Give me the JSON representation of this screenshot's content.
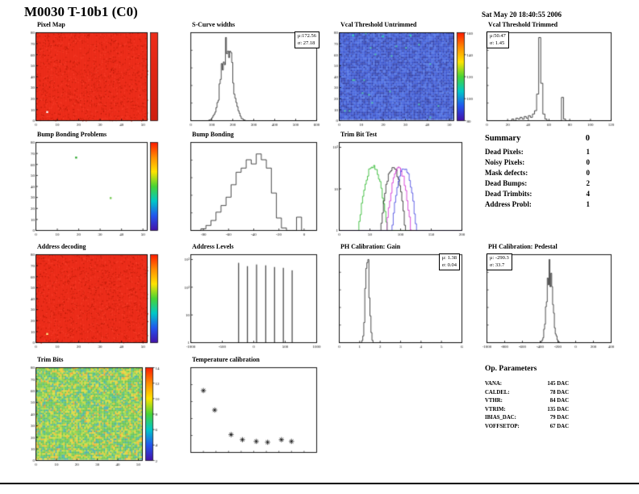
{
  "page": {
    "title": "M0030 T-10b1 (C0)",
    "timestamp": "Sat May 20 18:40:55 2006"
  },
  "summary": {
    "title": "Summary",
    "grade": "0",
    "rows": [
      {
        "label": "Dead Pixels:",
        "value": "1"
      },
      {
        "label": "Noisy Pixels:",
        "value": "0"
      },
      {
        "label": "Mask defects:",
        "value": "0"
      },
      {
        "label": "Dead Bumps:",
        "value": "2"
      },
      {
        "label": "Dead Trimbits:",
        "value": "4"
      },
      {
        "label": "Address Probl:",
        "value": "1"
      }
    ]
  },
  "op_parameters": {
    "title": "Op. Parameters",
    "rows": [
      {
        "label": "VANA:",
        "value": "145 DAC"
      },
      {
        "label": "CALDEL:",
        "value": "78 DAC"
      },
      {
        "label": "VTHR:",
        "value": "84 DAC"
      },
      {
        "label": "VTRIM:",
        "value": "135 DAC"
      },
      {
        "label": "IBIAS_DAC:",
        "value": "79 DAC"
      },
      {
        "label": "VOFFSETOP:",
        "value": "67 DAC"
      }
    ]
  },
  "chart_data": [
    {
      "title": "Pixel Map",
      "type": "heatmap",
      "x_range": [
        0,
        52
      ],
      "y_range": [
        0,
        80
      ],
      "x_ticks": [
        0,
        10,
        20,
        30,
        40,
        50
      ],
      "y_ticks": [
        0,
        10,
        20,
        30,
        40,
        50,
        60,
        70,
        80
      ],
      "fill": {
        "mode": "uniform-noise",
        "base": "#ee2d1a",
        "speckles": [
          "#d42410",
          "#f8402c",
          "#c01c0a"
        ]
      },
      "spots": [
        {
          "x": 0.1,
          "y": 0.9,
          "color": "#ffffff"
        }
      ],
      "colorbar": {
        "colors": [
          "#ee2d1a",
          "#cf1e0e"
        ],
        "ticks": []
      },
      "note": "uniform map, all pixels responding (value 1), one dead pixel lower-left"
    },
    {
      "title": "S-Curve widths",
      "type": "hist-gauss",
      "x_range": [
        0,
        600
      ],
      "x_ticks": [
        0,
        100,
        200,
        300,
        400,
        500,
        600
      ],
      "mu": 172.56,
      "sigma": 27.18,
      "nbins": 120,
      "stats": {
        "mu": 172.56,
        "sigma": 27.18,
        "mu_label": "μ:172.56",
        "sigma_label": "σ: 27.18"
      }
    },
    {
      "title": "Vcal Threshold Untrimmed",
      "type": "heatmap",
      "x_range": [
        0,
        52
      ],
      "y_range": [
        0,
        80
      ],
      "x_ticks": [
        0,
        10,
        20,
        30,
        40,
        50
      ],
      "y_ticks": [
        0,
        10,
        20,
        30,
        40,
        50,
        60,
        70,
        80
      ],
      "fill": {
        "mode": "noise",
        "palette": [
          "#2443cf",
          "#1d39c0",
          "#2f55dd",
          "#1a2fa8",
          "#3a63e2",
          "#2c4fd6",
          "#16279c"
        ],
        "rare": {
          "color": "#27b09a",
          "prob": 0.006
        }
      },
      "spots": [
        {
          "x": 0.12,
          "y": 0.03,
          "color": "#33ccbb"
        },
        {
          "x": 0.38,
          "y": 0.04,
          "color": "#33ccbb"
        },
        {
          "x": 0.62,
          "y": 0.03,
          "color": "#33ccbb"
        }
      ],
      "colorbar": {
        "colors": [
          "#ff1a00",
          "#ff8c00",
          "#ffe400",
          "#47d435",
          "#00c8c8",
          "#2255ee",
          "#4411aa"
        ],
        "ticks": [
          "160",
          "140",
          "120",
          "100",
          "80"
        ]
      }
    },
    {
      "title": "Vcal Threshold Trimmed",
      "type": "hist-bins",
      "x_range": [
        0,
        120
      ],
      "x_ticks": [
        0,
        20,
        40,
        60,
        80,
        100,
        120
      ],
      "bins": [
        0,
        0,
        0,
        0,
        0,
        0,
        0,
        0,
        0,
        0,
        0,
        0,
        0.02,
        0,
        0.03,
        0.02,
        0.04,
        0.02,
        0.05,
        0.03,
        0.06,
        0.04,
        0.08,
        0.12,
        0.32,
        1,
        0.45,
        0.08,
        0.02,
        0,
        0,
        0,
        0,
        0,
        0,
        0,
        0.28,
        0.02,
        0,
        0,
        0,
        0,
        0,
        0,
        0,
        0,
        0,
        0,
        0,
        0,
        0,
        0,
        0,
        0,
        0,
        0,
        0,
        0,
        0,
        0
      ],
      "stats": {
        "mu": 50.47,
        "sigma": 1.45,
        "mu_label": "μ:50.47",
        "sigma_label": "σ: 1.45"
      }
    },
    {
      "title": "Bump Bonding Problems",
      "type": "heatmap",
      "x_range": [
        0,
        52
      ],
      "y_range": [
        0,
        80
      ],
      "x_ticks": [
        0,
        10,
        20,
        30,
        40,
        50
      ],
      "y_ticks": [
        0,
        10,
        20,
        30,
        40,
        50,
        60,
        70,
        80
      ],
      "fill": {
        "mode": "blank",
        "base": "#ffffff"
      },
      "spots": [
        {
          "x": 0.36,
          "y": 0.17,
          "color": "#33aa33"
        },
        {
          "x": 0.67,
          "y": 0.63,
          "color": "#77cc55"
        }
      ],
      "colorbar": {
        "colors": [
          "#ff1a00",
          "#ff8c00",
          "#ffe400",
          "#47d435",
          "#00c8c8",
          "#2255ee",
          "#4411aa"
        ],
        "ticks": []
      },
      "note": "2 dead bumps visible as isolated colored pixels"
    },
    {
      "title": "Bump Bonding",
      "type": "hist-bins",
      "x_range": [
        -90,
        10
      ],
      "x_ticks": [
        -80,
        -60,
        -40,
        -20,
        0
      ],
      "bins": [
        0,
        0,
        0.02,
        0.06,
        0.12,
        0.22,
        0.3,
        0.4,
        0.55,
        0.7,
        0.75,
        0.85,
        0.8,
        0.92,
        0.85,
        0.75,
        0.45,
        0.15,
        0.03,
        0,
        0,
        0.16,
        0,
        0,
        0
      ]
    },
    {
      "title": "Trim Bit Test",
      "type": "multi-hist",
      "x_range": [
        0,
        200
      ],
      "x_ticks": [
        0,
        50,
        100,
        150,
        200
      ],
      "log": true,
      "y_tick_labels": [
        "1",
        "10",
        "10²"
      ],
      "nbins": 100,
      "series": [
        {
          "color": "#00aa00",
          "mu": 55,
          "sigma": 7,
          "amp": 0.9
        },
        {
          "color": "#000000",
          "mu": 88,
          "sigma": 6,
          "amp": 0.85
        },
        {
          "color": "#cc00cc",
          "mu": 97,
          "sigma": 6,
          "amp": 0.8
        },
        {
          "color": "#2222dd",
          "mu": 106,
          "sigma": 6,
          "amp": 0.82
        }
      ]
    },
    {
      "title": "Address decoding",
      "type": "heatmap",
      "x_range": [
        0,
        52
      ],
      "y_range": [
        0,
        80
      ],
      "x_ticks": [
        0,
        10,
        20,
        30,
        40,
        50
      ],
      "y_ticks": [
        0,
        10,
        20,
        30,
        40,
        50,
        60,
        70,
        80
      ],
      "fill": {
        "mode": "uniform-noise",
        "base": "#ee2d1a",
        "speckles": [
          "#d42410",
          "#f8402c",
          "#c01c0a"
        ]
      },
      "spots": [
        {
          "x": 0.1,
          "y": 0.9,
          "color": "#ffee88"
        }
      ],
      "colorbar": {
        "colors": [
          "#ff1a00",
          "#ff8c00",
          "#ffe400",
          "#47d435",
          "#00c8c8",
          "#2255ee",
          "#4411aa"
        ],
        "ticks": []
      },
      "note": "1 address decoding problem lower-left"
    },
    {
      "title": "Address Levels",
      "type": "spikes",
      "x_range": [
        -1000,
        1000
      ],
      "x_ticks": [
        -1000,
        -500,
        0,
        500,
        1000
      ],
      "log": true,
      "y_tick_labels": [
        "1",
        "10",
        "10²",
        "10³"
      ],
      "spikes": [
        {
          "x": -240,
          "h": 0.96
        },
        {
          "x": -100,
          "h": 0.92
        },
        {
          "x": 45,
          "h": 0.94
        },
        {
          "x": 190,
          "h": 0.93
        },
        {
          "x": 330,
          "h": 0.91
        },
        {
          "x": 470,
          "h": 0.9
        },
        {
          "x": 610,
          "h": 0.87
        }
      ]
    },
    {
      "title": "PH Calibration: Gain",
      "type": "hist-gauss",
      "x_range": [
        0,
        6
      ],
      "x_ticks": [
        0,
        1,
        2,
        3,
        4,
        5,
        6
      ],
      "mu": 1.38,
      "sigma": 0.04,
      "sigma_draw": 0.09,
      "nbins": 120,
      "stats": {
        "mu": 1.38,
        "sigma": 0.04,
        "mu_label": "μ: 1.38",
        "sigma_label": "σ: 0.04"
      }
    },
    {
      "title": "PH Calibration: Pedestal",
      "type": "hist-gauss",
      "x_range": [
        -1000,
        400
      ],
      "x_ticks": [
        -1000,
        -800,
        -600,
        -400,
        -200,
        0,
        200,
        400
      ],
      "mu": -290.3,
      "sigma": 33.7,
      "nbins": 140,
      "stats": {
        "mu": -290.3,
        "sigma": 33.7,
        "mu_label": "μ: -290.3",
        "sigma_label": "σ: 33.7"
      }
    },
    {
      "title": "Trim Bits",
      "type": "heatmap",
      "x_range": [
        0,
        52
      ],
      "y_range": [
        0,
        80
      ],
      "x_ticks": [
        0,
        10,
        20,
        30,
        40,
        50
      ],
      "y_ticks": [
        0,
        10,
        20,
        30,
        40,
        50,
        60,
        70,
        80
      ],
      "fill": {
        "mode": "noise",
        "palette": [
          "#55bb3a",
          "#6cc636",
          "#85cf30",
          "#a8d72a",
          "#c9dc25",
          "#55bb3a",
          "#6cc636",
          "#e7d01e",
          "#f2b318",
          "#3fbc5e",
          "#35b183",
          "#2fa3a8"
        ],
        "rare": {
          "color": "#e8821a",
          "prob": 0.02
        }
      },
      "colorbar": {
        "colors": [
          "#ff1a00",
          "#ff8c00",
          "#ffe400",
          "#47d435",
          "#00c8c8",
          "#2255ee",
          "#4411aa"
        ],
        "ticks": [
          "14",
          "12",
          "10",
          "8",
          "6",
          "4",
          "2"
        ]
      }
    },
    {
      "title": "Temperature calibration",
      "type": "scatter",
      "marker": "star",
      "x_range": [
        0,
        1
      ],
      "y_range": [
        0,
        1
      ],
      "points": [
        [
          0.1,
          0.73
        ],
        [
          0.19,
          0.5
        ],
        [
          0.32,
          0.21
        ],
        [
          0.41,
          0.15
        ],
        [
          0.52,
          0.13
        ],
        [
          0.61,
          0.12
        ],
        [
          0.72,
          0.15
        ],
        [
          0.8,
          0.13
        ]
      ],
      "note": "black-body temperature calibration points, decreasing then flat"
    }
  ]
}
